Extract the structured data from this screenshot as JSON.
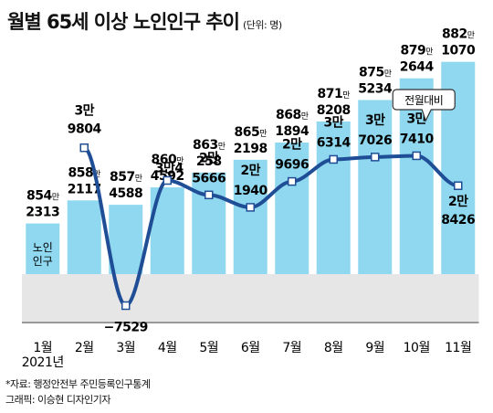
{
  "header": {
    "title": "월별 65세 이상 노인인구 추이",
    "unit": "(단위: 명)"
  },
  "footer": {
    "source": "*자료: 행정안전부 주민등록인구통계",
    "credit": "그래픽: 이승현 디자인기자"
  },
  "colors": {
    "bar": "#8fd8ef",
    "line": "#1f4e96",
    "negative_band": "#e6e6e6",
    "callout_border": "#333333"
  },
  "chart_data": {
    "type": "bar",
    "categories": [
      "1월",
      "2월",
      "3월",
      "4월",
      "5월",
      "6월",
      "7월",
      "8월",
      "9월",
      "10월",
      "11월"
    ],
    "year_label": "2021년",
    "series": [
      {
        "name": "노인인구",
        "type": "bar",
        "values": [
          8542313,
          8582117,
          8574588,
          8604592,
          8630258,
          8652198,
          8681894,
          8718208,
          8755234,
          8792644,
          8821070
        ],
        "labels": [
          [
            "854",
            "만",
            "2313"
          ],
          [
            "858",
            "만",
            "2117"
          ],
          [
            "857",
            "만",
            "4588"
          ],
          [
            "860",
            "만",
            "4592"
          ],
          [
            "863",
            "만",
            "258"
          ],
          [
            "865",
            "만",
            "2198"
          ],
          [
            "868",
            "만",
            "1894"
          ],
          [
            "871",
            "만",
            "8208"
          ],
          [
            "875",
            "만",
            "5234"
          ],
          [
            "879",
            "만",
            "2644"
          ],
          [
            "882",
            "만",
            "1070"
          ]
        ]
      },
      {
        "name": "전월대비",
        "type": "line",
        "x": [
          "2월",
          "3월",
          "4월",
          "5월",
          "6월",
          "7월",
          "8월",
          "9월",
          "10월",
          "11월"
        ],
        "values": [
          39804,
          -7529,
          30004,
          25666,
          21940,
          29696,
          36314,
          37026,
          37410,
          28426
        ],
        "labels": [
          [
            "3만",
            "9804"
          ],
          [
            "",
            "−7529"
          ],
          [
            "3만4",
            ""
          ],
          [
            "2만",
            "5666"
          ],
          [
            "2만",
            "1940"
          ],
          [
            "2만",
            "9696"
          ],
          [
            "3만",
            "6314"
          ],
          [
            "3만",
            "7026"
          ],
          [
            "3만",
            "7410"
          ],
          [
            "2만",
            "8426"
          ]
        ]
      }
    ],
    "bar_series_label": [
      "노인",
      "인구"
    ],
    "callout": "전월대비"
  }
}
